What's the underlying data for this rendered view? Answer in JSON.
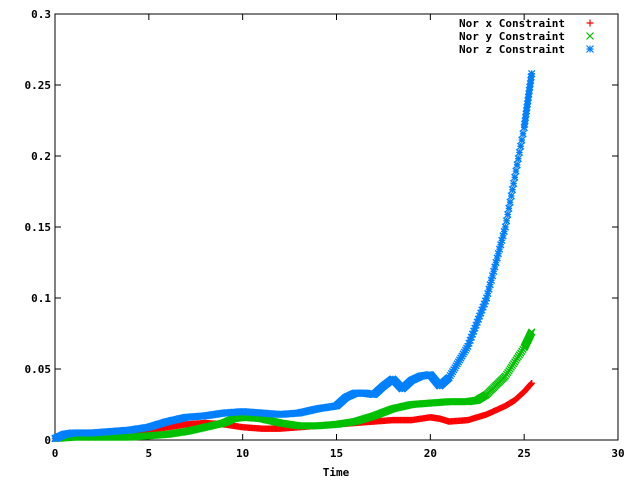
{
  "chart_data": {
    "type": "scatter",
    "title": "",
    "xlabel": "Time",
    "ylabel": "",
    "xlim": [
      0,
      30
    ],
    "ylim": [
      0,
      0.3
    ],
    "xticks": [
      0,
      5,
      10,
      15,
      20,
      25,
      30
    ],
    "yticks": [
      0,
      0.05,
      0.1,
      0.15,
      0.2,
      0.25,
      0.3
    ],
    "xtick_labels": [
      "0",
      "5",
      "10",
      "15",
      "20",
      "25",
      "30"
    ],
    "ytick_labels": [
      "0",
      "0.05",
      "0.1",
      "0.15",
      "0.2",
      "0.25",
      "0.3"
    ],
    "grid": false,
    "legend_position": "top-right",
    "series": [
      {
        "name": "Nor x Constraint",
        "marker": "+",
        "color": "#ff0000",
        "x": [
          0,
          1,
          2,
          3,
          4,
          5,
          6,
          7,
          8,
          9,
          10,
          11,
          12,
          13,
          14,
          15,
          16,
          17,
          18,
          19,
          20,
          20.5,
          21,
          22,
          23,
          24,
          24.5,
          25,
          25.4
        ],
        "y": [
          0.001,
          0.002,
          0.003,
          0.004,
          0.005,
          0.007,
          0.009,
          0.011,
          0.012,
          0.011,
          0.009,
          0.008,
          0.008,
          0.009,
          0.01,
          0.011,
          0.012,
          0.013,
          0.014,
          0.014,
          0.016,
          0.015,
          0.013,
          0.014,
          0.018,
          0.024,
          0.028,
          0.034,
          0.04
        ]
      },
      {
        "name": "Nor y Constraint",
        "marker": "x",
        "color": "#00c000",
        "x": [
          0,
          1,
          2,
          3,
          4,
          5,
          6,
          7,
          8,
          9,
          9.5,
          10,
          11,
          12,
          13,
          14,
          15,
          16,
          17,
          18,
          19,
          20,
          21,
          22,
          22.5,
          23,
          24,
          25,
          25.4
        ],
        "y": [
          0.001,
          0.002,
          0.002,
          0.002,
          0.002,
          0.003,
          0.004,
          0.006,
          0.009,
          0.012,
          0.015,
          0.016,
          0.015,
          0.012,
          0.01,
          0.01,
          0.011,
          0.013,
          0.017,
          0.022,
          0.025,
          0.026,
          0.027,
          0.027,
          0.028,
          0.032,
          0.045,
          0.065,
          0.076
        ]
      },
      {
        "name": "Nor z Constraint",
        "marker": "*",
        "color": "#0080ff",
        "x": [
          0,
          0.5,
          1,
          2,
          3,
          4,
          5,
          6,
          7,
          8,
          9,
          10,
          11,
          12,
          13,
          14,
          15,
          15.5,
          16,
          16.5,
          17,
          17.5,
          18,
          18.5,
          19,
          19.5,
          20,
          20.5,
          21,
          22,
          23,
          24,
          25,
          25.4
        ],
        "y": [
          0.001,
          0.004,
          0.005,
          0.005,
          0.006,
          0.007,
          0.009,
          0.013,
          0.016,
          0.017,
          0.019,
          0.02,
          0.019,
          0.018,
          0.019,
          0.022,
          0.024,
          0.03,
          0.033,
          0.033,
          0.032,
          0.038,
          0.043,
          0.036,
          0.042,
          0.045,
          0.046,
          0.038,
          0.044,
          0.066,
          0.1,
          0.15,
          0.22,
          0.258
        ]
      }
    ]
  }
}
